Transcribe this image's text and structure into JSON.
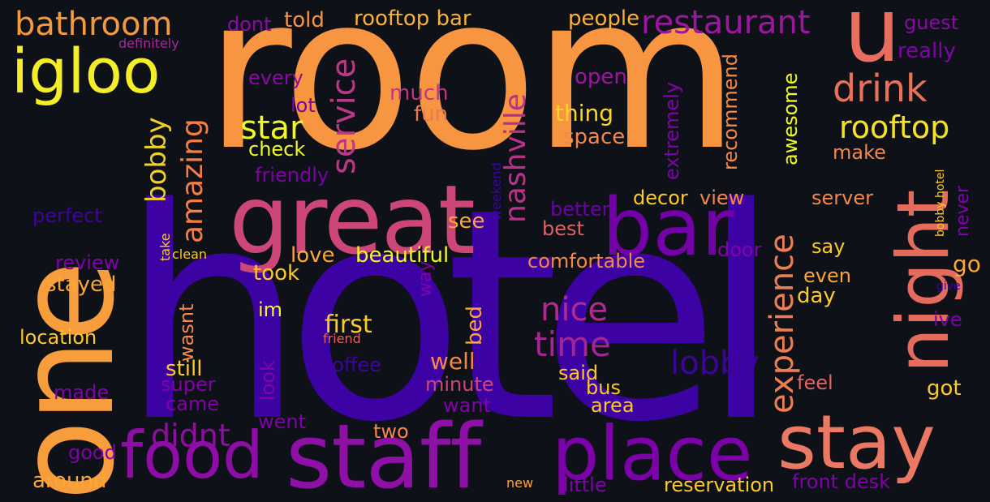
{
  "title": "hotel review word cloud",
  "colors": {
    "background": "#0e1117"
  },
  "words": [
    {
      "text": "hotel",
      "color": "#3d02a3"
    },
    {
      "text": "room",
      "color": "#f79540"
    },
    {
      "text": "one",
      "color": "#f89d3b"
    },
    {
      "text": "great",
      "color": "#cc4778"
    },
    {
      "text": "staff",
      "color": "#8e10a6"
    },
    {
      "text": "place",
      "color": "#7b02a8"
    },
    {
      "text": "stay",
      "color": "#ea7862"
    },
    {
      "text": "bar",
      "color": "#7201a8"
    },
    {
      "text": "food",
      "color": "#8d0da6"
    },
    {
      "text": "night",
      "color": "#e56b5d"
    },
    {
      "text": "igloo",
      "color": "#f3ee27"
    },
    {
      "text": "u",
      "color": "#e86f5f"
    },
    {
      "text": "bathroom",
      "color": "#f59a3c"
    },
    {
      "text": "restaurant",
      "color": "#9c179e"
    },
    {
      "text": "drink",
      "color": "#e97158"
    },
    {
      "text": "rooftop",
      "color": "#f4e325"
    },
    {
      "text": "service",
      "color": "#bd3786"
    },
    {
      "text": "nashville",
      "color": "#b93289"
    },
    {
      "text": "star",
      "color": "#f0f921"
    },
    {
      "text": "amazing",
      "color": "#f47e44"
    },
    {
      "text": "bobby",
      "color": "#f2d127"
    },
    {
      "text": "experience",
      "color": "#ee7d52"
    },
    {
      "text": "nice",
      "color": "#b12a90"
    },
    {
      "text": "time",
      "color": "#a42596"
    },
    {
      "text": "lobby",
      "color": "#3b049a"
    },
    {
      "text": "didnt",
      "color": "#8f0da4"
    },
    {
      "text": "rooftop bar",
      "color": "#f8b334"
    },
    {
      "text": "dont",
      "color": "#8b0aa5"
    },
    {
      "text": "told",
      "color": "#f89540"
    },
    {
      "text": "people",
      "color": "#fcb234"
    },
    {
      "text": "guest",
      "color": "#8a09a5"
    },
    {
      "text": "really",
      "color": "#7e03a8"
    },
    {
      "text": "definitely",
      "color": "#a62998"
    },
    {
      "text": "every",
      "color": "#8b0aa5"
    },
    {
      "text": "lot",
      "color": "#7e03a8"
    },
    {
      "text": "much",
      "color": "#bd3786"
    },
    {
      "text": "fun",
      "color": "#ed7953"
    },
    {
      "text": "open",
      "color": "#9c179e"
    },
    {
      "text": "thing",
      "color": "#fbd724"
    },
    {
      "text": "space",
      "color": "#f48849"
    },
    {
      "text": "check",
      "color": "#f0f921"
    },
    {
      "text": "friendly",
      "color": "#7c02a8"
    },
    {
      "text": "extremely",
      "color": "#7e03a8"
    },
    {
      "text": "recommend",
      "color": "#f48849"
    },
    {
      "text": "awesome",
      "color": "#f0f921"
    },
    {
      "text": "make",
      "color": "#f48849"
    },
    {
      "text": "decor",
      "color": "#fdca26"
    },
    {
      "text": "view",
      "color": "#f48849"
    },
    {
      "text": "server",
      "color": "#f48849"
    },
    {
      "text": "weekend",
      "color": "#3e049c"
    },
    {
      "text": "perfect",
      "color": "#3e049c"
    },
    {
      "text": "better",
      "color": "#6a00a8"
    },
    {
      "text": "best",
      "color": "#e16462"
    },
    {
      "text": "see",
      "color": "#fca636"
    },
    {
      "text": "door",
      "color": "#7e03a8"
    },
    {
      "text": "say",
      "color": "#fdca26"
    },
    {
      "text": "bobby hotel",
      "color": "#fdca26"
    },
    {
      "text": "never",
      "color": "#7e03a8"
    },
    {
      "text": "review",
      "color": "#7e03a8"
    },
    {
      "text": "take",
      "color": "#fdca26"
    },
    {
      "text": "clean",
      "color": "#fdca26"
    },
    {
      "text": "love",
      "color": "#fca636"
    },
    {
      "text": "beautiful",
      "color": "#f0f921"
    },
    {
      "text": "comfortable",
      "color": "#f48849"
    },
    {
      "text": "go",
      "color": "#fca636"
    },
    {
      "text": "give",
      "color": "#3e049c"
    },
    {
      "text": "stayed",
      "color": "#fca636"
    },
    {
      "text": "took",
      "color": "#fdca26"
    },
    {
      "text": "way",
      "color": "#7e03a8"
    },
    {
      "text": "even",
      "color": "#fca636"
    },
    {
      "text": "day",
      "color": "#fdca26"
    },
    {
      "text": "im",
      "color": "#f0f921"
    },
    {
      "text": "ive",
      "color": "#7e03a8"
    },
    {
      "text": "location",
      "color": "#fdca26"
    },
    {
      "text": "first",
      "color": "#fdca26"
    },
    {
      "text": "friend",
      "color": "#e16462"
    },
    {
      "text": "bed",
      "color": "#fca636"
    },
    {
      "text": "wasnt",
      "color": "#f48849"
    },
    {
      "text": "coffee",
      "color": "#3e049c"
    },
    {
      "text": "well",
      "color": "#f48849"
    },
    {
      "text": "still",
      "color": "#fdca26"
    },
    {
      "text": "look",
      "color": "#7e03a8"
    },
    {
      "text": "said",
      "color": "#fdca26"
    },
    {
      "text": "feel",
      "color": "#e16462"
    },
    {
      "text": "minute",
      "color": "#cc4778"
    },
    {
      "text": "super",
      "color": "#7e03a8"
    },
    {
      "text": "made",
      "color": "#7e03a8"
    },
    {
      "text": "bus",
      "color": "#fdca26"
    },
    {
      "text": "got",
      "color": "#fdca26"
    },
    {
      "text": "came",
      "color": "#7e03a8"
    },
    {
      "text": "want",
      "color": "#7e03a8"
    },
    {
      "text": "area",
      "color": "#fdca26"
    },
    {
      "text": "went",
      "color": "#7e03a8"
    },
    {
      "text": "two",
      "color": "#f48849"
    },
    {
      "text": "good",
      "color": "#7e03a8"
    },
    {
      "text": "around",
      "color": "#fca636"
    },
    {
      "text": "new",
      "color": "#fca636"
    },
    {
      "text": "little",
      "color": "#7e03a8"
    },
    {
      "text": "reservation",
      "color": "#fdca26"
    },
    {
      "text": "front desk",
      "color": "#7e03a8"
    }
  ]
}
